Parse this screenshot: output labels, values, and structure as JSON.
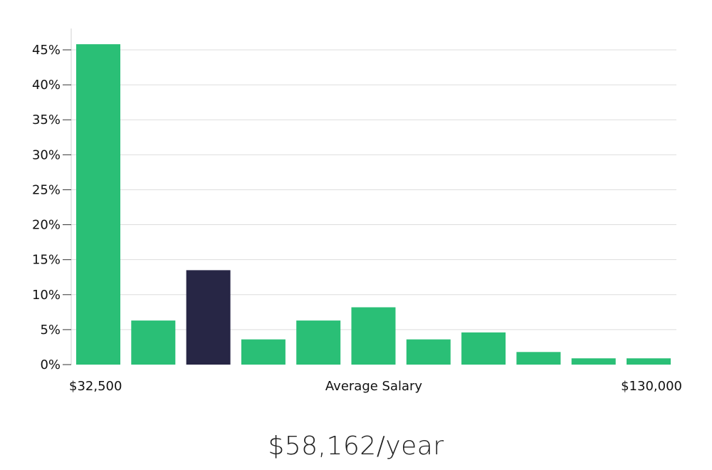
{
  "chart_data": {
    "type": "bar",
    "title": "",
    "xlabel": "Average Salary",
    "ylabel": "",
    "ylim": [
      0,
      45
    ],
    "ytick_values": [
      0,
      5,
      10,
      15,
      20,
      25,
      30,
      35,
      40,
      45
    ],
    "ytick_labels": [
      "0%",
      "5%",
      "10%",
      "15%",
      "20%",
      "25%",
      "30%",
      "35%",
      "40%",
      "45%"
    ],
    "x_range_start_label": "$32,500",
    "x_range_end_label": "$130,000",
    "values": [
      45.8,
      6.3,
      13.5,
      3.6,
      6.3,
      8.2,
      3.6,
      4.6,
      1.8,
      0.9,
      0.9
    ],
    "highlight_index": 2,
    "grid": true,
    "colors": {
      "bar": "#2abf76",
      "highlight": "#272645",
      "grid": "#dddddd",
      "axis": "#d0d0d0"
    }
  },
  "summary": {
    "average_salary": "$58,162/year"
  }
}
